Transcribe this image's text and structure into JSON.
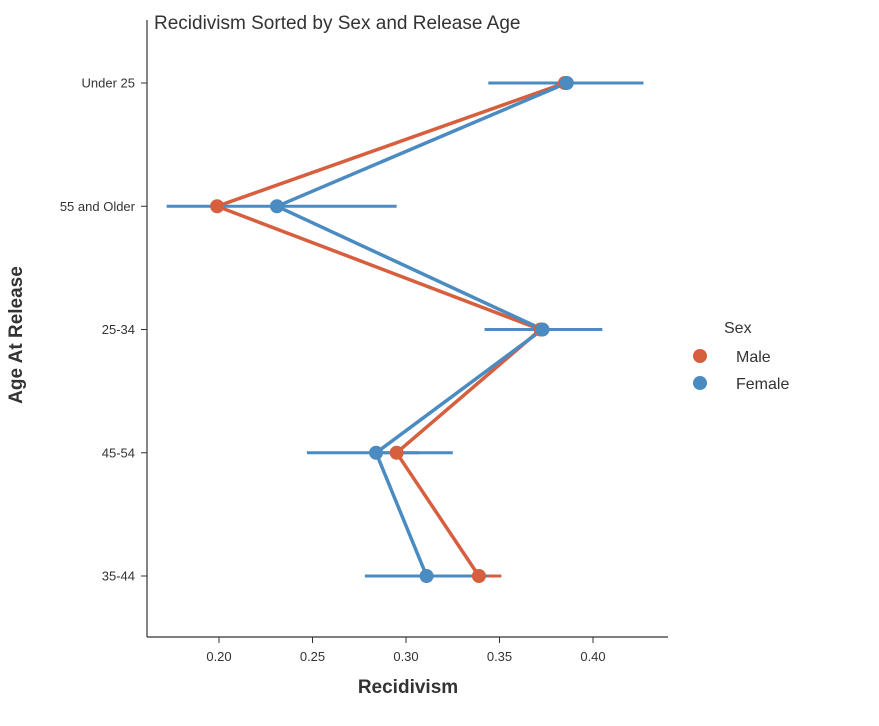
{
  "chart_data": {
    "type": "line",
    "title": "Recidivism Sorted by Sex and Release Age",
    "xlabel": "Recidivism",
    "ylabel": "Age At Release",
    "categories": [
      "Under 25",
      "55 and Older",
      "25-34",
      "45-54",
      "35-44"
    ],
    "xlim": [
      0.16,
      0.42
    ],
    "xticks": [
      0.2,
      0.25,
      0.3,
      0.35,
      0.4
    ],
    "xtick_labels": [
      "0.20",
      "0.25",
      "0.30",
      "0.35",
      "0.40"
    ],
    "grid": false,
    "legend": {
      "title": "Sex",
      "placement": "right"
    },
    "series": [
      {
        "name": "Male",
        "color": "#d65f3e",
        "values": [
          0.385,
          0.199,
          0.372,
          0.295,
          0.339
        ],
        "ci_low": [
          0.383,
          0.197,
          0.37,
          0.283,
          0.327
        ],
        "ci_high": [
          0.387,
          0.201,
          0.374,
          0.307,
          0.351
        ]
      },
      {
        "name": "Female",
        "color": "#4a8bc2",
        "values": [
          0.386,
          0.231,
          0.373,
          0.284,
          0.311
        ],
        "ci_low": [
          0.344,
          0.172,
          0.342,
          0.247,
          0.278
        ],
        "ci_high": [
          0.427,
          0.295,
          0.405,
          0.325,
          0.344
        ]
      }
    ]
  }
}
